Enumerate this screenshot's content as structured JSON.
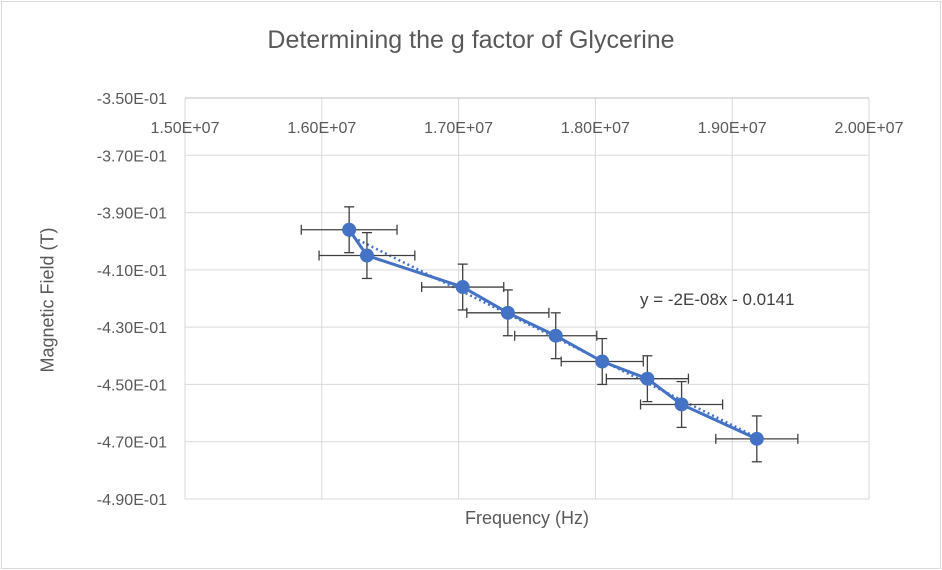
{
  "chart_data": {
    "type": "scatter",
    "title": "Determining the g factor of Glycerine",
    "xlabel": "Frequency (Hz)",
    "ylabel": "Magnetic Field (T)",
    "xlim": [
      15000000,
      20000000
    ],
    "ylim": [
      -0.49,
      -0.35
    ],
    "x_ticks": [
      15000000,
      16000000,
      17000000,
      18000000,
      19000000,
      20000000
    ],
    "x_tick_labels": [
      "1.50E+07",
      "1.60E+07",
      "1.70E+07",
      "1.80E+07",
      "1.90E+07",
      "2.00E+07"
    ],
    "y_ticks": [
      -0.35,
      -0.37,
      -0.39,
      -0.41,
      -0.43,
      -0.45,
      -0.47,
      -0.49
    ],
    "y_tick_labels": [
      "-3.50E-01",
      "-3.70E-01",
      "-3.90E-01",
      "-4.10E-01",
      "-4.30E-01",
      "-4.50E-01",
      "-4.70E-01",
      "-4.90E-01"
    ],
    "x_axis_position": "top",
    "grid": true,
    "legend": "none",
    "series": [
      {
        "style": "line-with-markers",
        "color": "#4472c4",
        "x": [
          16200000,
          16330000,
          17030000,
          17360000,
          17710000,
          18050000,
          18380000,
          18630000,
          19180000
        ],
        "y": [
          -0.396,
          -0.405,
          -0.416,
          -0.425,
          -0.433,
          -0.442,
          -0.448,
          -0.457,
          -0.469
        ],
        "x_error": [
          350000,
          350000,
          300000,
          300000,
          300000,
          300000,
          300000,
          300000,
          300000
        ],
        "y_error": [
          0.008,
          0.008,
          0.008,
          0.008,
          0.008,
          0.008,
          0.008,
          0.008,
          0.008
        ]
      }
    ],
    "trendline": {
      "type": "linear",
      "style": "dotted",
      "color": "#4472c4",
      "equation": "y = -2E-08x - 0.0141"
    }
  }
}
